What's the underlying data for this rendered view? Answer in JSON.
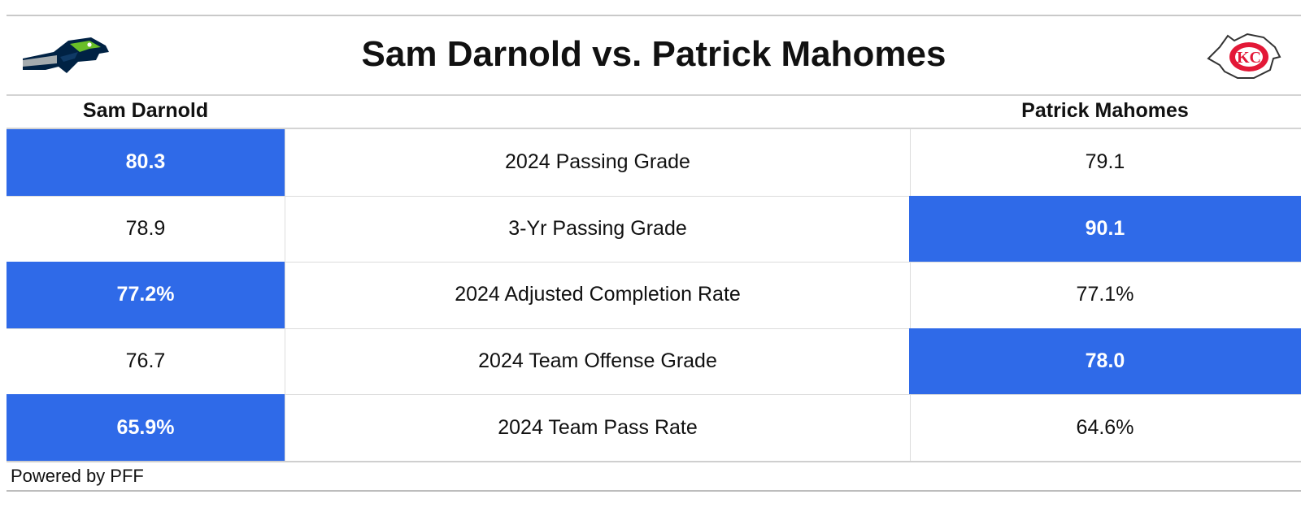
{
  "title": "Sam Darnold vs. Patrick Mahomes",
  "logos": {
    "left": "seahawks-logo",
    "right": "chiefs-logo"
  },
  "colors": {
    "highlight": "#2f6ae8",
    "seahawks_navy": "#002244",
    "seahawks_gray": "#a5acaf",
    "chiefs_red": "#e31837"
  },
  "columns": {
    "left": "Sam Darnold",
    "right": "Patrick Mahomes"
  },
  "chart_data": {
    "type": "table",
    "title": "Sam Darnold vs. Patrick Mahomes",
    "columns": [
      "Sam Darnold",
      "",
      "Patrick Mahomes"
    ],
    "rows": [
      {
        "metric": "2024 Passing Grade",
        "left": "80.3",
        "right": "79.1",
        "winner": "left"
      },
      {
        "metric": "3-Yr Passing Grade",
        "left": "78.9",
        "right": "90.1",
        "winner": "right"
      },
      {
        "metric": "2024 Adjusted Completion Rate",
        "left": "77.2%",
        "right": "77.1%",
        "winner": "left"
      },
      {
        "metric": "2024 Team Offense Grade",
        "left": "76.7",
        "right": "78.0",
        "winner": "right"
      },
      {
        "metric": "2024 Team Pass Rate",
        "left": "65.9%",
        "right": "64.6%",
        "winner": "left"
      }
    ]
  },
  "footer": "Powered by PFF"
}
